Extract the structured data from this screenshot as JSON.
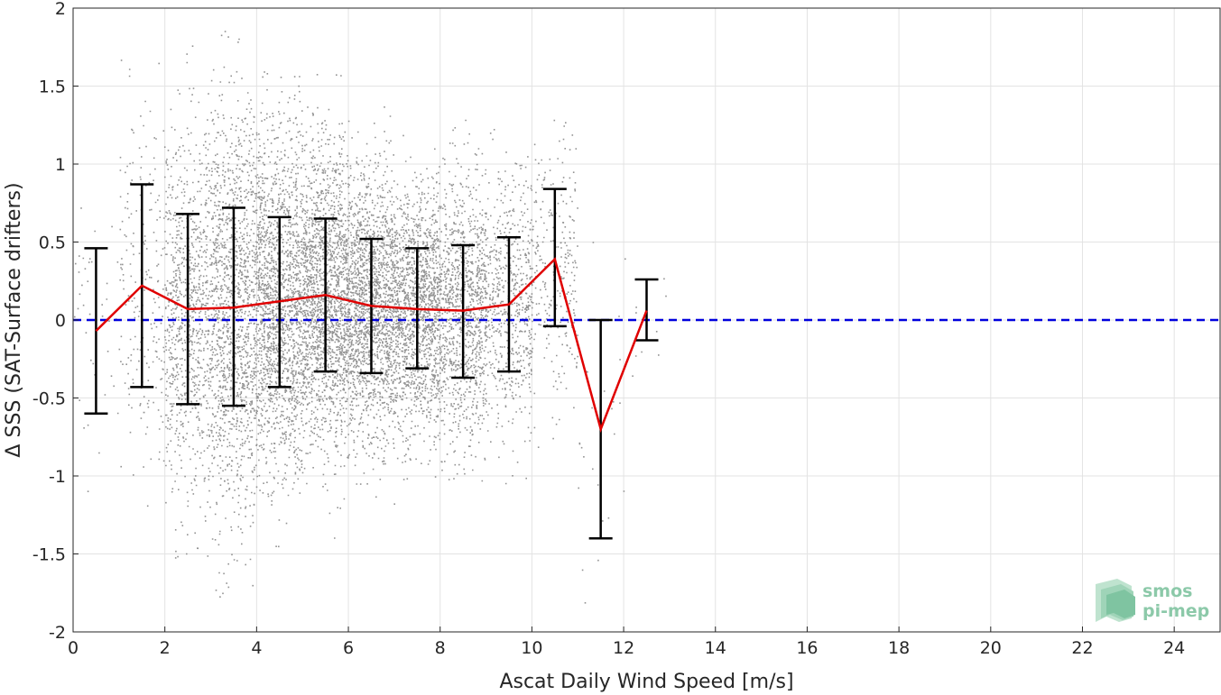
{
  "chart_data": {
    "type": "scatter",
    "title": "",
    "xlabel": "Ascat Daily Wind Speed [m/s]",
    "ylabel": "Δ SSS (SAT-Surface drifters)",
    "xlim": [
      0,
      25
    ],
    "ylim": [
      -2,
      2
    ],
    "x_ticks": [
      "0",
      "2",
      "4",
      "6",
      "8",
      "10",
      "12",
      "14",
      "16",
      "18",
      "20",
      "22",
      "24"
    ],
    "y_ticks": [
      "2",
      "1.5",
      "1",
      "0.5",
      "0",
      "-0.5",
      "-1",
      "-1.5",
      "-2"
    ],
    "grid": true,
    "reference_line": {
      "y": 0,
      "style": "dashed",
      "color": "#0000dd"
    },
    "scatter_color": "#808080",
    "series": [
      {
        "type": "line",
        "color": "#e00000",
        "x": [
          0.5,
          1.5,
          2.5,
          3.5,
          4.5,
          5.5,
          6.5,
          7.5,
          8.5,
          9.5,
          10.5,
          11.5,
          12.5
        ],
        "y": [
          -0.07,
          0.22,
          0.07,
          0.08,
          0.12,
          0.16,
          0.09,
          0.07,
          0.06,
          0.1,
          0.39,
          -0.7,
          0.06
        ]
      },
      {
        "type": "errorbar",
        "color": "#000000",
        "x": [
          0.5,
          1.5,
          2.5,
          3.5,
          4.5,
          5.5,
          6.5,
          7.5,
          8.5,
          9.5,
          10.5,
          11.5,
          12.5
        ],
        "lower": [
          -0.6,
          -0.43,
          -0.54,
          -0.55,
          -0.43,
          -0.33,
          -0.34,
          -0.31,
          -0.37,
          -0.33,
          -0.04,
          -1.4,
          -0.13
        ],
        "upper": [
          0.46,
          0.87,
          0.68,
          0.72,
          0.66,
          0.65,
          0.52,
          0.46,
          0.48,
          0.53,
          0.84,
          0.0,
          0.26
        ]
      }
    ],
    "scatter_density": {
      "x": [
        0.5,
        1.5,
        2.5,
        3.5,
        4.5,
        5.5,
        6.5,
        7.5,
        8.5,
        9.5,
        10.5,
        11.5,
        12.5
      ],
      "y_center": [
        -0.07,
        0.22,
        0.07,
        0.08,
        0.12,
        0.16,
        0.09,
        0.07,
        0.06,
        0.1,
        0.39,
        -0.7,
        0.06
      ],
      "y_spread": [
        0.53,
        0.65,
        0.61,
        0.64,
        0.55,
        0.49,
        0.43,
        0.39,
        0.43,
        0.43,
        0.44,
        0.7,
        0.2
      ],
      "count": [
        40,
        220,
        900,
        1400,
        1700,
        1800,
        1700,
        1500,
        1100,
        600,
        260,
        25,
        12
      ]
    }
  },
  "logo": {
    "line1": "smos",
    "line2": "pi-mep"
  }
}
